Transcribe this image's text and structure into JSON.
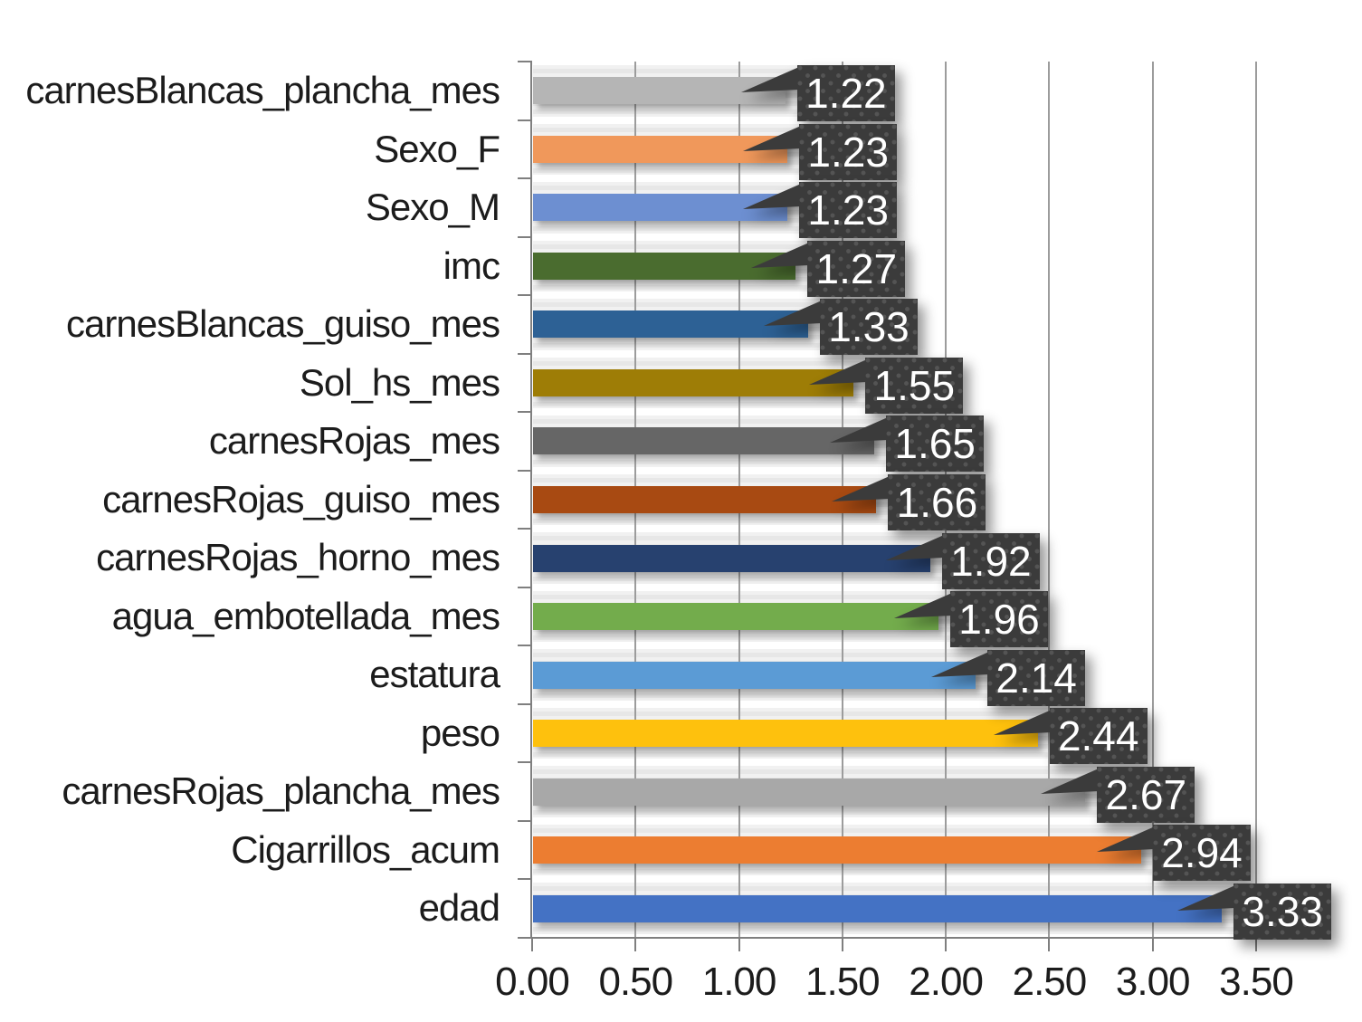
{
  "chart_data": {
    "type": "bar",
    "orientation": "horizontal",
    "title": "",
    "xlabel": "",
    "ylabel": "",
    "xlim": [
      0,
      3.5
    ],
    "x_tick_step": 0.5,
    "x_tick_labels": [
      "0.00",
      "0.50",
      "1.00",
      "1.50",
      "2.00",
      "2.50",
      "3.00",
      "3.50"
    ],
    "grid": true,
    "legend": false,
    "categories": [
      "carnesBlancas_plancha_mes",
      "Sexo_F",
      "Sexo_M",
      "imc",
      "carnesBlancas_guiso_mes",
      "Sol_hs_mes",
      "carnesRojas_mes",
      "carnesRojas_guiso_mes",
      "carnesRojas_horno_mes",
      "agua_embotellada_mes",
      "estatura",
      "peso",
      "carnesRojas_plancha_mes",
      "Cigarrillos_acum",
      "edad"
    ],
    "values": [
      1.22,
      1.23,
      1.23,
      1.27,
      1.33,
      1.55,
      1.65,
      1.66,
      1.92,
      1.96,
      2.14,
      2.44,
      2.67,
      2.94,
      3.33
    ],
    "value_labels": [
      "1.22",
      "1.23",
      "1.23",
      "1.27",
      "1.33",
      "1.55",
      "1.65",
      "1.66",
      "1.92",
      "1.96",
      "2.14",
      "2.44",
      "2.67",
      "2.94",
      "3.33"
    ],
    "bar_colors": [
      "#B5B5B5",
      "#F0985B",
      "#6D8FD1",
      "#4A6C2F",
      "#2D6195",
      "#9E7D06",
      "#666666",
      "#A84A12",
      "#27416F",
      "#73AC4C",
      "#5B9BD5",
      "#FEC10D",
      "#A8A8A8",
      "#EC7D31",
      "#4472C4"
    ]
  },
  "colors": {
    "background": "#FFFFFF",
    "band_fill": "#EAEAEA",
    "gridline": "#9C9C9C",
    "axis_line": "#7F7F7F",
    "callout_background": "#3B3B3B",
    "callout_text": "#FFFFFF",
    "label_text": "#1C1C1C"
  }
}
